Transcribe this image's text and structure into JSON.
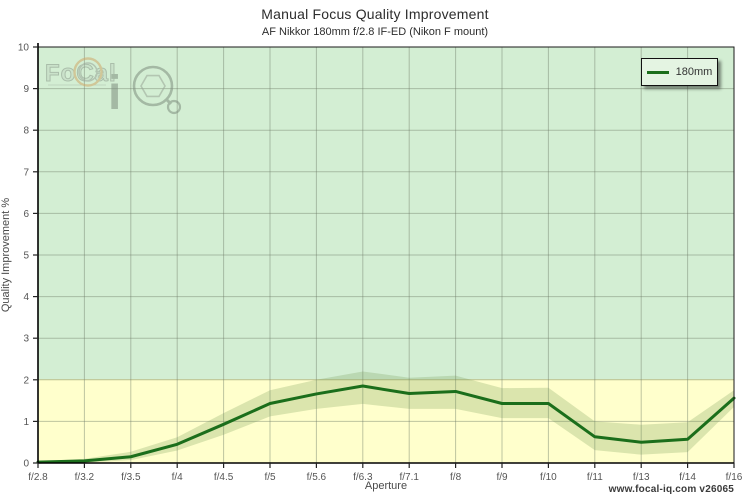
{
  "footer": {
    "branding": "www.focal-iq.com  v26065"
  },
  "watermark": {
    "focal": "FoCal",
    "iq_i": "i"
  },
  "colors": {
    "line": "#1b6e1b",
    "band": "rgba(110,150,80,0.25)",
    "zone_good": "#d3eed3",
    "zone_low": "#ffffcc",
    "grid": "rgba(110,125,105,0.45)",
    "zone_boundary": "#bcbf8a",
    "frame": "#1a1a1a",
    "tick_label": "#555555"
  },
  "chart_data": {
    "type": "line",
    "title": "Manual Focus Quality Improvement",
    "subtitle": "AF Nikkor 180mm f/2.8 IF-ED (Nikon F mount)",
    "xlabel": "Aperture",
    "ylabel": "Quality Improvement %",
    "ylim": [
      0,
      10
    ],
    "yticks": [
      0,
      1,
      2,
      3,
      4,
      5,
      6,
      7,
      8,
      9,
      10
    ],
    "grid": true,
    "legend_position": "top-right",
    "categories": [
      "f/2.8",
      "f/3.2",
      "f/3.5",
      "f/4",
      "f/4.5",
      "f/5",
      "f/5.6",
      "f/6.3",
      "f/7.1",
      "f/8",
      "f/9",
      "f/10",
      "f/11",
      "f/13",
      "f/14",
      "f/16"
    ],
    "series": [
      {
        "name": "180mm",
        "color": "#1b6e1b",
        "values": [
          0.02,
          0.05,
          0.15,
          0.45,
          0.93,
          1.43,
          1.66,
          1.85,
          1.67,
          1.72,
          1.43,
          1.43,
          0.63,
          0.5,
          0.57,
          1.56
        ],
        "band_upper": [
          0.04,
          0.1,
          0.27,
          0.62,
          1.2,
          1.75,
          2.0,
          2.2,
          2.05,
          2.1,
          1.8,
          1.81,
          1.0,
          0.92,
          0.98,
          1.75
        ],
        "band_lower": [
          0.0,
          0.01,
          0.07,
          0.3,
          0.68,
          1.12,
          1.3,
          1.42,
          1.3,
          1.3,
          1.08,
          1.08,
          0.31,
          0.2,
          0.26,
          1.35
        ]
      }
    ],
    "zones": [
      {
        "label": "good-zone",
        "from": 2,
        "to": 10,
        "color": "#d3eed3"
      },
      {
        "label": "low-zone",
        "from": 0,
        "to": 2,
        "color": "#ffffcc"
      }
    ]
  }
}
